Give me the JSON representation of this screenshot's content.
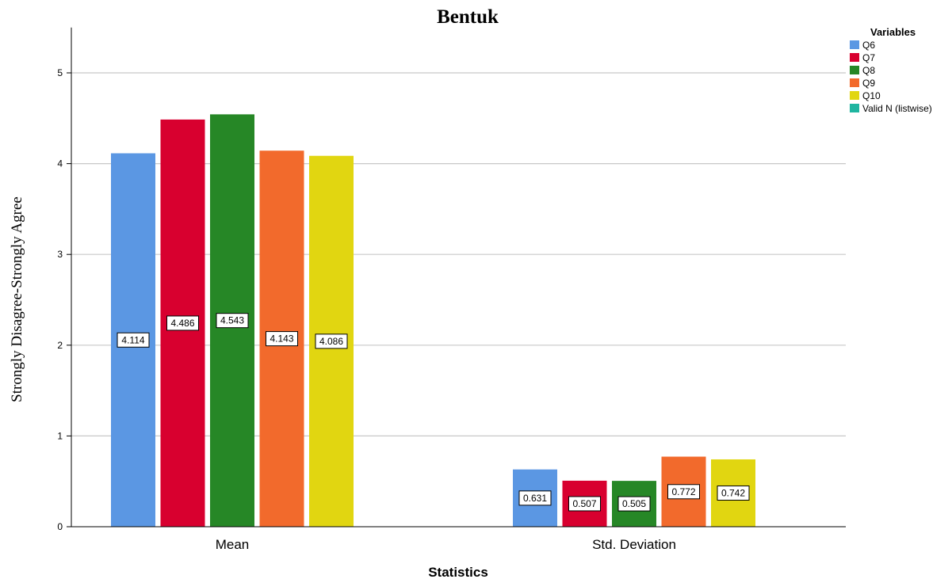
{
  "chart_data": {
    "type": "bar",
    "title": "Bentuk",
    "xlabel": "Statistics",
    "ylabel": "Strongly Disagree-Strongly Agree",
    "categories": [
      "Mean",
      "Std. Deviation"
    ],
    "ylim": [
      0,
      5.5
    ],
    "yticks": [
      0,
      1,
      2,
      3,
      4,
      5
    ],
    "grid": true,
    "legend": {
      "title": "Variables",
      "placement": "top-right"
    },
    "series": [
      {
        "name": "Q6",
        "color": "#5b97e3",
        "values": [
          4.114,
          0.631
        ],
        "labels": [
          "4.114",
          "0.631"
        ]
      },
      {
        "name": "Q7",
        "color": "#d8002f",
        "values": [
          4.486,
          0.507
        ],
        "labels": [
          "4.486",
          "0.507"
        ]
      },
      {
        "name": "Q8",
        "color": "#268726",
        "values": [
          4.543,
          0.505
        ],
        "labels": [
          "4.543",
          "0.505"
        ]
      },
      {
        "name": "Q9",
        "color": "#f26a2c",
        "values": [
          4.143,
          0.772
        ],
        "labels": [
          "4.143",
          "0.772"
        ]
      },
      {
        "name": "Q10",
        "color": "#e1d611",
        "values": [
          4.086,
          0.742
        ],
        "labels": [
          "4.086",
          "0.742"
        ]
      },
      {
        "name": "Valid N (listwise)",
        "color": "#1fb5a0",
        "values": [
          null,
          null
        ],
        "labels": []
      }
    ]
  }
}
